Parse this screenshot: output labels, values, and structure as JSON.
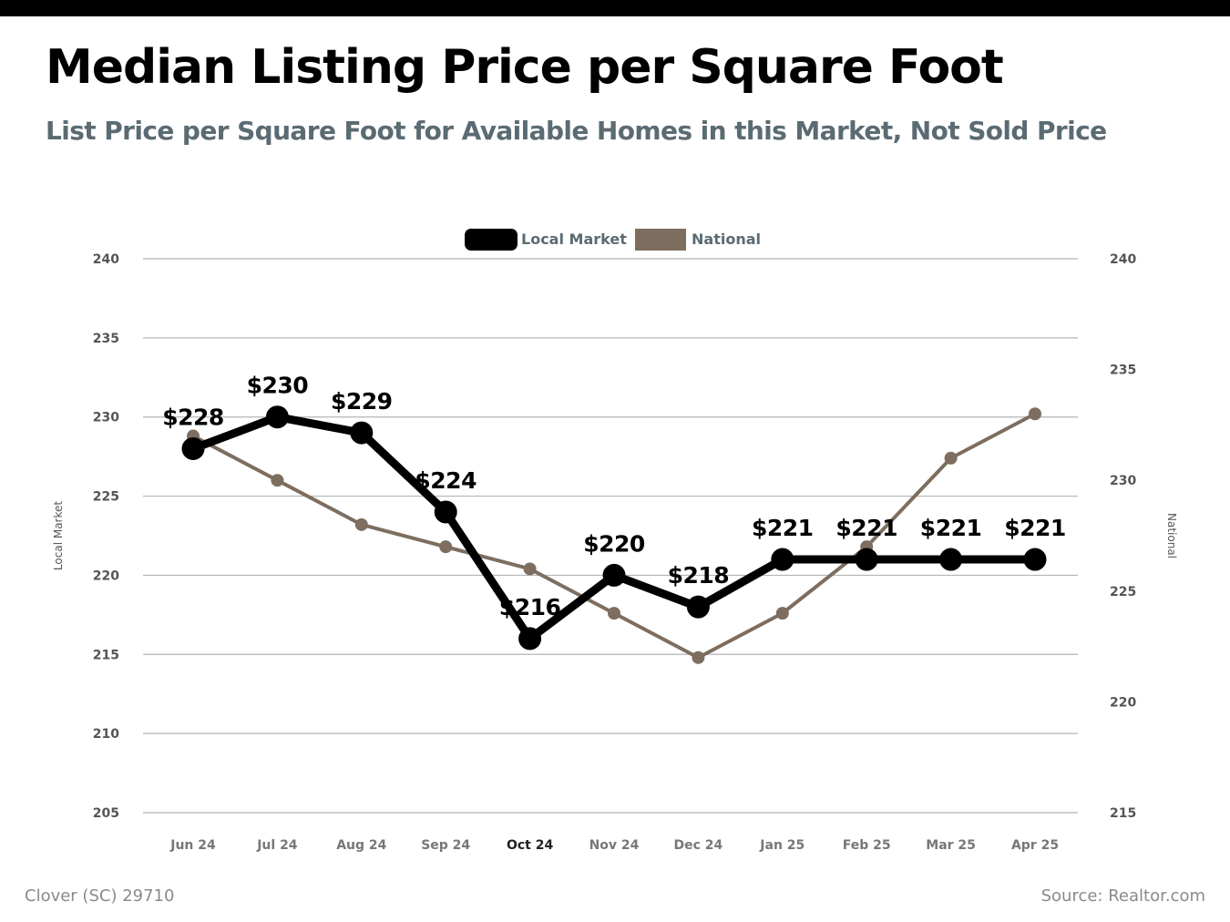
{
  "header": {
    "title": "Median Listing Price per Square Foot",
    "subtitle": "List Price per Square Foot for Available Homes in this Market, Not Sold Price"
  },
  "footer": {
    "location": "Clover (SC) 29710",
    "source": "Source: Realtor.com"
  },
  "colors": {
    "local": "#000000",
    "national": "#7d6e5f",
    "grid": "#b5b5b5",
    "axis_text": "#555555",
    "legend_text": "#5b6b73"
  },
  "chart_data": {
    "type": "line",
    "categories": [
      "Jun 24",
      "Jul 24",
      "Aug 24",
      "Sep 24",
      "Oct 24",
      "Nov 24",
      "Dec 24",
      "Jan 25",
      "Feb 25",
      "Mar 25",
      "Apr 25"
    ],
    "highlighted_category": "Oct 24",
    "series": [
      {
        "name": "Local Market",
        "axis": "left",
        "color": "#000000",
        "values": [
          228,
          230,
          229,
          224,
          216,
          220,
          218,
          221,
          221,
          221,
          221
        ],
        "data_labels": [
          "$228",
          "$230",
          "$229",
          "$224",
          "$216",
          "$220",
          "$218",
          "$221",
          "$221",
          "$221",
          "$221"
        ]
      },
      {
        "name": "National",
        "axis": "right",
        "color": "#7d6e5f",
        "values": [
          232,
          230,
          228,
          227,
          226,
          224,
          222,
          224,
          227,
          231,
          233
        ]
      }
    ],
    "left_axis": {
      "label": "Local Market",
      "ylim": [
        205,
        240
      ],
      "ticks": [
        205,
        210,
        215,
        220,
        225,
        230,
        235,
        240
      ]
    },
    "right_axis": {
      "label": "National",
      "ylim": [
        215,
        240
      ],
      "ticks": [
        215,
        220,
        225,
        230,
        235,
        240
      ]
    },
    "grid": true,
    "legend": "top-center"
  }
}
